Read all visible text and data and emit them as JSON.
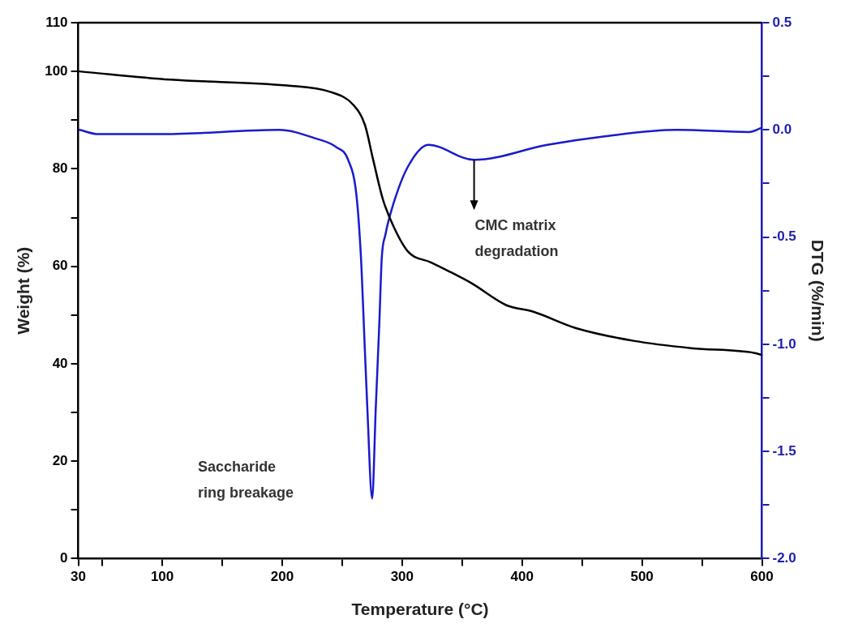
{
  "chart_data": {
    "type": "line",
    "xlabel": "Temperature (°C)",
    "ylabel": "Weight (%)",
    "y2label": "DTG (%/min)",
    "xlim": [
      30,
      600
    ],
    "xticks": [
      30,
      {
        "value": 50,
        "label": null
      },
      100,
      {
        "value": 150,
        "label": null
      },
      200,
      {
        "value": 250,
        "label": null
      },
      300,
      {
        "value": 350,
        "label": null
      },
      400,
      {
        "value": 450,
        "label": null
      },
      500,
      {
        "value": 550,
        "label": null
      },
      600
    ],
    "ylim": [
      0,
      110
    ],
    "yticks": [
      0,
      {
        "value": 10,
        "label": null
      },
      20,
      {
        "value": 30,
        "label": null
      },
      40,
      {
        "value": 50,
        "label": null
      },
      60,
      {
        "value": 70,
        "label": null
      },
      80,
      {
        "value": 90,
        "label": null
      },
      100,
      110
    ],
    "y2lim": [
      -2.0,
      0.5
    ],
    "y2ticks": [
      {
        "value": -2,
        "label": "-2.0"
      },
      {
        "value": -1.75,
        "label": null
      },
      {
        "value": -1.5,
        "label": "-1.5"
      },
      {
        "value": -1.25,
        "label": null
      },
      {
        "value": -1,
        "label": "-1.0"
      },
      {
        "value": -0.75,
        "label": null
      },
      {
        "value": -0.5,
        "label": "-0.5"
      },
      {
        "value": -0.25,
        "label": null
      },
      {
        "value": 0,
        "label": "0.0"
      },
      {
        "value": 0.25,
        "label": null
      },
      {
        "value": 0.5,
        "label": "0.5"
      }
    ],
    "grid": false,
    "legend": false,
    "marker": "none",
    "line_style": "solid",
    "annotations": [
      "Saccharide ring breakage",
      "CMC matrix degradation"
    ],
    "series": [
      {
        "color": "#000000",
        "x": [
          31,
          107,
          204,
          240,
          259,
          269,
          276,
          284,
          293,
          305,
          324,
          338,
          358,
          387,
          409,
          445,
          493,
          541,
          594,
          600
        ],
        "values": [
          100,
          98.3,
          97.1,
          95.8,
          93.2,
          89,
          81.7,
          73.7,
          68.1,
          63,
          60.8,
          59.1,
          56.5,
          52,
          50.7,
          47.3,
          44.7,
          43.2,
          42.2,
          41.8
        ]
      },
      {
        "color": "#1a1acc",
        "axis": "y2",
        "x": [
          31,
          47,
          101,
          197,
          228,
          245,
          255,
          262,
          266,
          268,
          271,
          275,
          278,
          281,
          283,
          286,
          293,
          305,
          322,
          360,
          421,
          469,
          529,
          589,
          600
        ],
        "values": [
          0.0,
          -0.02,
          -0.02,
          0.0,
          -0.04,
          -0.08,
          -0.14,
          -0.31,
          -0.63,
          -0.9,
          -1.3,
          -1.72,
          -1.3,
          -0.9,
          -0.6,
          -0.49,
          -0.34,
          -0.17,
          -0.07,
          -0.14,
          -0.07,
          -0.03,
          0.0,
          -0.01,
          0.01
        ]
      }
    ]
  }
}
